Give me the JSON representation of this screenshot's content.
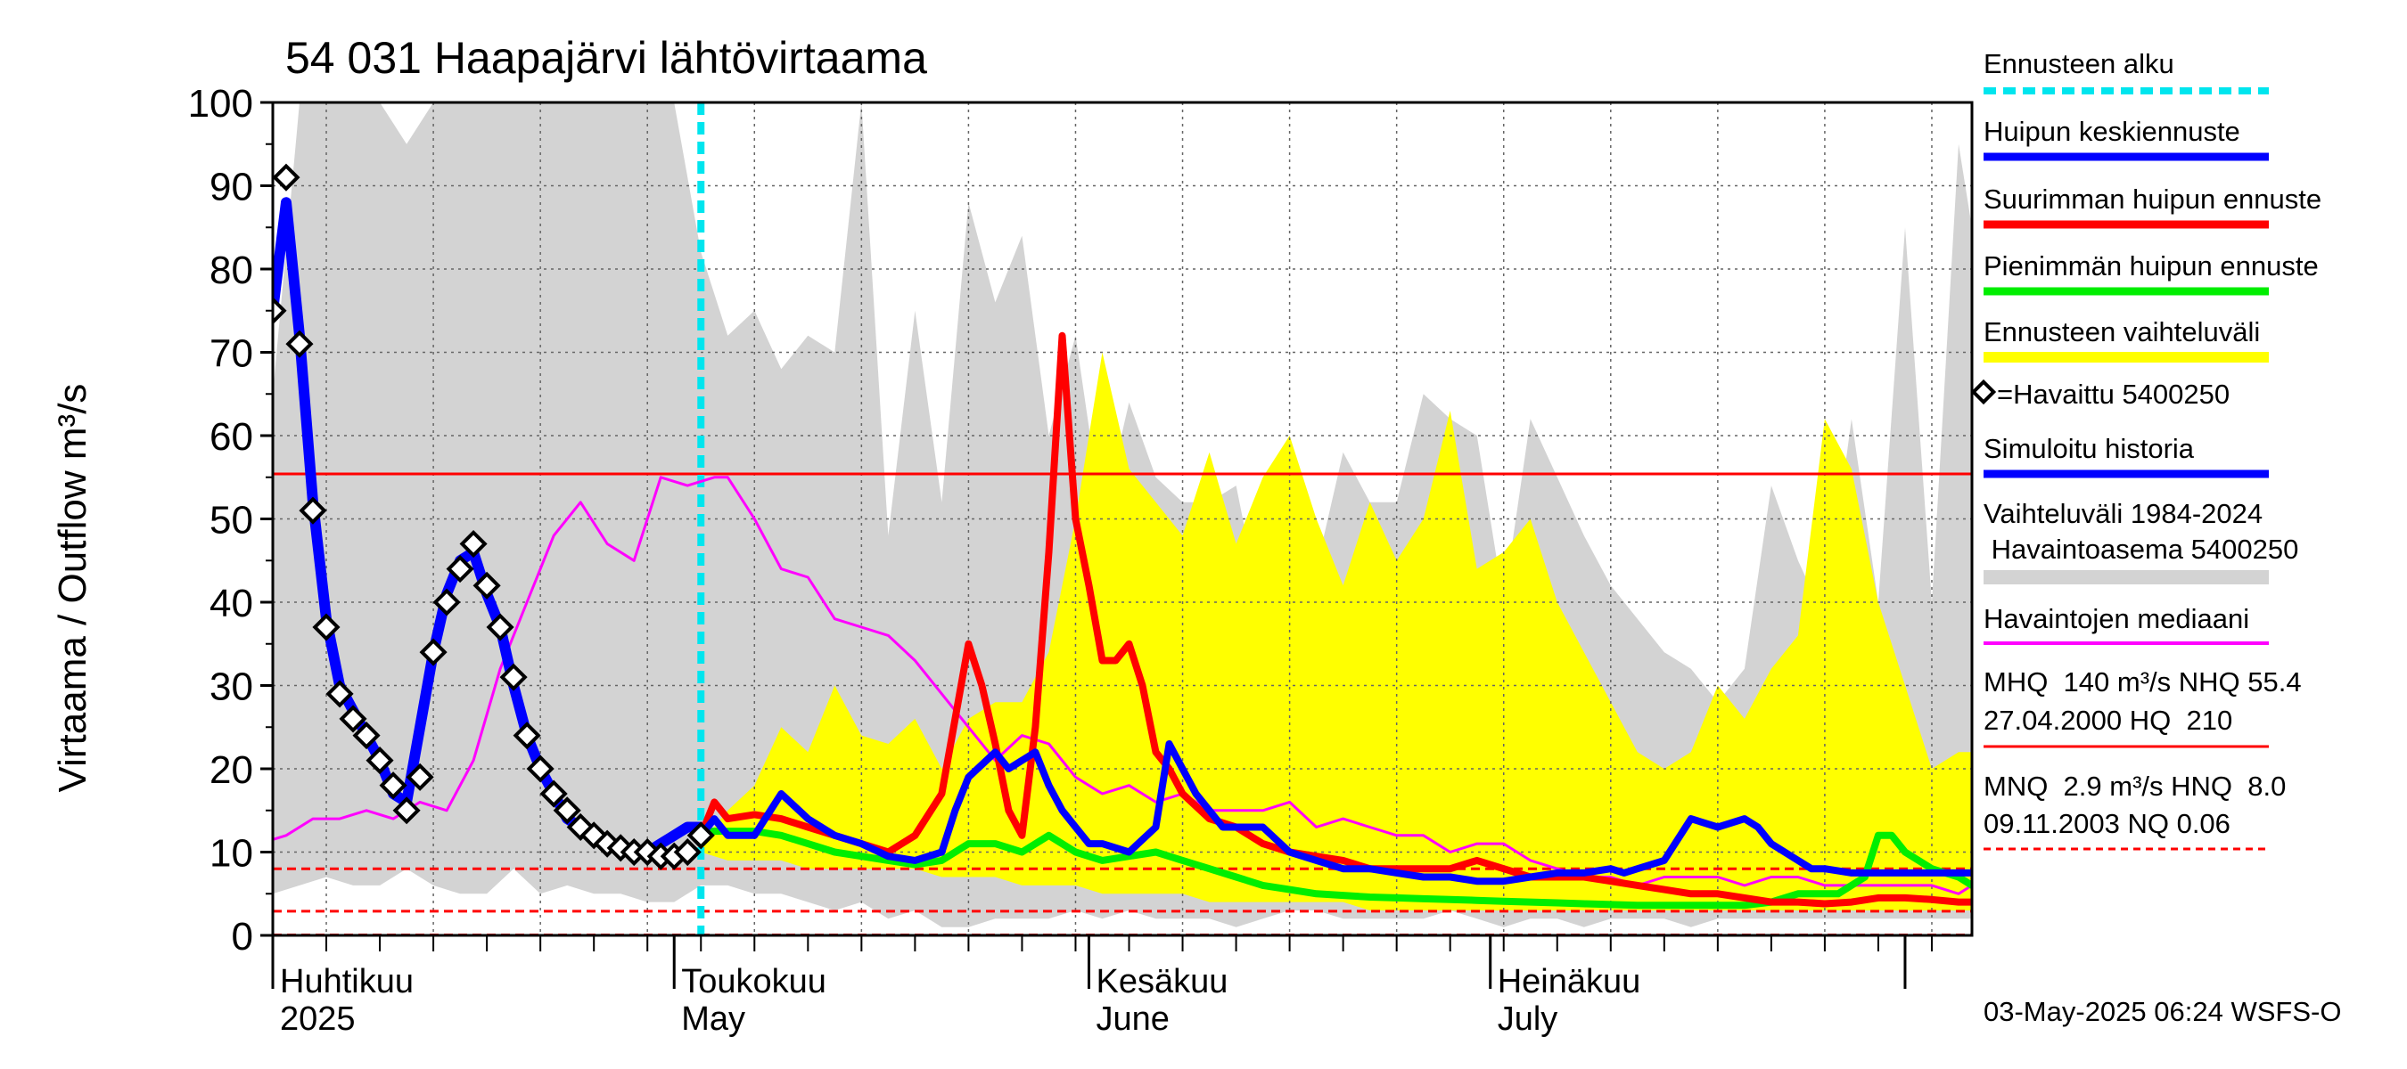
{
  "chart_data": {
    "type": "line",
    "title": "54 031 Haapajärvi lähtövirtaama",
    "ylabel": "Virtaama / Outflow    m³/s",
    "ylim": [
      0,
      100
    ],
    "yticks": [
      0,
      10,
      20,
      30,
      40,
      50,
      60,
      70,
      80,
      90,
      100
    ],
    "x_range_day": [
      0,
      127
    ],
    "forecast_start_day": 32,
    "month_labels": [
      {
        "day": 0,
        "fi": "Huhtikuu",
        "en": "2025"
      },
      {
        "day": 30,
        "fi": "Toukokuu",
        "en": "May"
      },
      {
        "day": 61,
        "fi": "Kesäkuu",
        "en": "June"
      },
      {
        "day": 91,
        "fi": "Heinäkuu",
        "en": "July"
      }
    ],
    "reference_lines": [
      {
        "value": 55.4,
        "style": "solid",
        "color": "#ff0000"
      },
      {
        "value": 8.0,
        "style": "dashed",
        "color": "#ff0000"
      },
      {
        "value": 2.9,
        "style": "dashed",
        "color": "#ff0000"
      },
      {
        "value": 0.06,
        "style": "dashed",
        "color": "#ff0000"
      }
    ],
    "historical_band": {
      "name": "Vaihteluväli 1984-2024 Havaintoasema 5400250",
      "color": "#d3d3d3",
      "x": [
        -1,
        0,
        2,
        4,
        6,
        8,
        10,
        12,
        14,
        16,
        18,
        20,
        22,
        24,
        26,
        28,
        30,
        32,
        34,
        36,
        38,
        40,
        42,
        44,
        46,
        48,
        50,
        52,
        54,
        56,
        58,
        60,
        62,
        64,
        66,
        68,
        70,
        72,
        74,
        76,
        78,
        80,
        82,
        84,
        86,
        88,
        90,
        92,
        94,
        96,
        98,
        100,
        102,
        104,
        106,
        108,
        110,
        112,
        114,
        116,
        118,
        120,
        122,
        124,
        126,
        127
      ],
      "upper": [
        52,
        65,
        100,
        100,
        100,
        100,
        95,
        100,
        100,
        100,
        100,
        100,
        100,
        100,
        100,
        100,
        100,
        82,
        72,
        75,
        68,
        72,
        70,
        100,
        48,
        75,
        52,
        88,
        76,
        84,
        60,
        72,
        50,
        64,
        55,
        52,
        52,
        54,
        38,
        43,
        44,
        58,
        52,
        52,
        65,
        62,
        60,
        40,
        62,
        55,
        48,
        42,
        38,
        34,
        32,
        28,
        32,
        54,
        45,
        38,
        62,
        40,
        85,
        40,
        95,
        85
      ],
      "lower": [
        6,
        5,
        6,
        7,
        6,
        6,
        8,
        6,
        5,
        5,
        8,
        5,
        6,
        5,
        5,
        4,
        4,
        6,
        6,
        5,
        5,
        4,
        3,
        4,
        2,
        3,
        1,
        1,
        2,
        2,
        2,
        3,
        2,
        3,
        2,
        2,
        2,
        1,
        2,
        3,
        3,
        2,
        2,
        2,
        2,
        3,
        2,
        1,
        2,
        2,
        1,
        2,
        2,
        2,
        1,
        2,
        2,
        2,
        2,
        2,
        2,
        2,
        2,
        2,
        2,
        2
      ]
    },
    "forecast_band": {
      "name": "Ennusteen vaihteluväli",
      "color": "#ffff00",
      "x": [
        32,
        34,
        36,
        38,
        40,
        42,
        44,
        46,
        48,
        50,
        52,
        54,
        56,
        58,
        60,
        62,
        64,
        66,
        68,
        70,
        72,
        74,
        76,
        78,
        80,
        82,
        84,
        86,
        88,
        90,
        92,
        94,
        96,
        98,
        100,
        102,
        104,
        106,
        108,
        110,
        112,
        114,
        116,
        118,
        120,
        122,
        124,
        126,
        127
      ],
      "upper": [
        11,
        15,
        18,
        25,
        22,
        30,
        24,
        23,
        26,
        20,
        26,
        28,
        28,
        34,
        50,
        70,
        56,
        52,
        48,
        58,
        47,
        55,
        60,
        50,
        42,
        52,
        45,
        50,
        63,
        44,
        46,
        50,
        40,
        34,
        28,
        22,
        20,
        22,
        30,
        26,
        32,
        36,
        62,
        56,
        40,
        30,
        20,
        22,
        22
      ],
      "lower": [
        10,
        9,
        9,
        9,
        8,
        8,
        8,
        8,
        8,
        7,
        7,
        7,
        6,
        6,
        6,
        5,
        5,
        5,
        5,
        4,
        4,
        4,
        4,
        4,
        4,
        3,
        3,
        3,
        3,
        3,
        3,
        3,
        3,
        3,
        3,
        3,
        3,
        3,
        3,
        3,
        3,
        3,
        3,
        3,
        3,
        3,
        3,
        3,
        3
      ]
    },
    "series": [
      {
        "name": "Havaintojen mediaani",
        "color": "#ff00ff",
        "width": 3,
        "x": [
          -1,
          1,
          3,
          5,
          7,
          9,
          11,
          13,
          15,
          17,
          19,
          21,
          23,
          25,
          27,
          29,
          31,
          33,
          34,
          36,
          38,
          40,
          42,
          44,
          46,
          48,
          50,
          52,
          54,
          56,
          58,
          60,
          62,
          64,
          66,
          68,
          70,
          72,
          74,
          76,
          78,
          80,
          82,
          84,
          86,
          88,
          90,
          92,
          94,
          96,
          98,
          100,
          102,
          104,
          106,
          108,
          110,
          112,
          114,
          116,
          118,
          120,
          122,
          124,
          126,
          127
        ],
        "y": [
          11,
          12,
          14,
          14,
          15,
          14,
          16,
          15,
          21,
          32,
          40,
          48,
          52,
          47,
          45,
          55,
          54,
          55,
          55,
          50,
          44,
          43,
          38,
          37,
          36,
          33,
          29,
          25,
          21,
          24,
          23,
          19,
          17,
          18,
          16,
          17,
          15,
          15,
          15,
          16,
          13,
          14,
          13,
          12,
          12,
          10,
          11,
          11,
          9,
          8,
          7,
          7,
          6,
          7,
          7,
          7,
          6,
          7,
          7,
          6,
          6,
          6,
          6,
          6,
          5,
          6
        ]
      },
      {
        "name": "Simuloitu historia",
        "color": "#0000ff",
        "width": 12,
        "x": [
          0,
          1,
          2,
          3,
          4,
          5,
          6,
          7,
          8,
          9,
          10,
          11,
          12,
          13,
          14,
          15,
          16,
          17,
          18,
          19,
          20,
          21,
          22,
          23,
          24,
          25,
          26,
          27,
          28,
          29,
          30,
          31,
          32
        ],
        "y": [
          75,
          88,
          72,
          52,
          38,
          30,
          27,
          24,
          21,
          17,
          16,
          25,
          34,
          41,
          45,
          46,
          41,
          37,
          30,
          24,
          20,
          17,
          14,
          13,
          12,
          11,
          10.5,
          10,
          10,
          11,
          12,
          13,
          13
        ]
      },
      {
        "name": "Pienimmän huipun ennuste",
        "color": "#00ee00",
        "width": 8,
        "x": [
          32,
          34,
          36,
          38,
          40,
          42,
          44,
          46,
          48,
          50,
          52,
          54,
          56,
          58,
          60,
          62,
          64,
          66,
          68,
          70,
          72,
          74,
          76,
          78,
          80,
          82,
          84,
          86,
          88,
          90,
          92,
          94,
          96,
          98,
          100,
          102,
          104,
          106,
          108,
          110,
          112,
          113,
          114,
          115,
          116,
          117,
          118,
          119,
          120,
          121,
          122,
          124,
          126,
          127
        ],
        "y": [
          12.5,
          12.5,
          12.5,
          12,
          11,
          10,
          9.5,
          9,
          8.5,
          9,
          11,
          11,
          10,
          12,
          10,
          9,
          9.5,
          10,
          9,
          8,
          7,
          6,
          5.5,
          5,
          4.8,
          4.6,
          4.5,
          4.4,
          4.3,
          4.2,
          4.1,
          4,
          3.9,
          3.8,
          3.7,
          3.6,
          3.6,
          3.6,
          3.6,
          3.6,
          4,
          4.5,
          5,
          5,
          5,
          5,
          6,
          7,
          12,
          12,
          10,
          8,
          7,
          6
        ]
      },
      {
        "name": "Suurimman huipun ennuste",
        "color": "#ff0000",
        "width": 8,
        "x": [
          32,
          33,
          34,
          36,
          38,
          40,
          42,
          44,
          46,
          48,
          50,
          52,
          53,
          54,
          55,
          56,
          57,
          58,
          59,
          60,
          61,
          62,
          63,
          64,
          65,
          66,
          67,
          68,
          70,
          72,
          74,
          76,
          78,
          80,
          82,
          84,
          86,
          88,
          90,
          92,
          94,
          96,
          98,
          100,
          102,
          104,
          106,
          108,
          110,
          112,
          114,
          116,
          118,
          120,
          122,
          124,
          126,
          127
        ],
        "y": [
          12,
          16,
          14,
          14.5,
          14,
          13,
          12,
          11,
          10,
          12,
          17,
          35,
          30,
          23,
          15,
          12,
          25,
          46,
          72,
          50,
          42,
          33,
          33,
          35,
          30,
          22,
          20,
          17,
          14,
          13,
          11,
          10,
          9.5,
          9,
          8,
          8,
          8,
          8,
          9,
          8,
          7,
          7,
          7,
          6.5,
          6,
          5.5,
          5,
          5,
          4.5,
          4,
          4,
          3.8,
          4,
          4.5,
          4.5,
          4.3,
          4,
          4
        ]
      },
      {
        "name": "Huipun keskiennuste",
        "color": "#0000ff",
        "width": 8,
        "x": [
          32,
          33,
          34,
          36,
          38,
          40,
          42,
          44,
          46,
          48,
          50,
          51,
          52,
          54,
          55,
          56,
          57,
          58,
          59,
          60,
          61,
          62,
          64,
          66,
          67,
          68,
          69,
          70,
          71,
          72,
          74,
          76,
          78,
          80,
          82,
          84,
          86,
          88,
          90,
          92,
          94,
          96,
          98,
          100,
          101,
          102,
          104,
          106,
          108,
          110,
          111,
          112,
          113,
          114,
          115,
          116,
          118,
          120,
          122,
          124,
          126,
          127
        ],
        "y": [
          12,
          14,
          12,
          12,
          17,
          14,
          12,
          11,
          9.5,
          9,
          10,
          15,
          19,
          22,
          20,
          21,
          22,
          18,
          15,
          13,
          11,
          11,
          10,
          13,
          23,
          20,
          17,
          15,
          13,
          13,
          13,
          10,
          9,
          8,
          8,
          7.5,
          7,
          7,
          6.5,
          6.5,
          7,
          7.5,
          7.5,
          8,
          7.5,
          8,
          9,
          14,
          13,
          14,
          13,
          11,
          10,
          9,
          8,
          8,
          7.5,
          7.5,
          7.5,
          7.5,
          7.5,
          7.5
        ]
      }
    ],
    "observed": {
      "name": "=Havaittu 5400250",
      "x": [
        0,
        1,
        2,
        3,
        4,
        5,
        6,
        7,
        8,
        9,
        10,
        11,
        12,
        13,
        14,
        15,
        16,
        17,
        18,
        19,
        20,
        21,
        22,
        23,
        24,
        25,
        26,
        27,
        28,
        29,
        30,
        31,
        32
      ],
      "y": [
        75,
        91,
        71,
        51,
        37,
        29,
        26,
        24,
        21,
        18,
        15,
        19,
        34,
        40,
        44,
        47,
        42,
        37,
        31,
        24,
        20,
        17,
        15,
        13,
        12,
        11,
        10.5,
        10,
        10,
        9.5,
        9.5,
        10,
        12
      ]
    }
  },
  "legend": {
    "forecast_start": "Ennusteen alku",
    "peak_mean": "Huipun keskiennuste",
    "max_peak": "Suurimman huipun ennuste",
    "min_peak": "Pienimmän huipun ennuste",
    "forecast_range": "Ennusteen vaihteluväli",
    "observed": "=Havaittu 5400250",
    "simulated": "Simuloitu historia",
    "hist_range_1": "Vaihteluväli 1984-2024",
    "hist_range_2": " Havaintoasema 5400250",
    "median": "Havaintojen mediaani",
    "stats_1a": "MHQ  140 m³/s NHQ 55.4",
    "stats_1b": "27.04.2000 HQ  210",
    "stats_2a": "MNQ  2.9 m³/s HNQ  8.0",
    "stats_2b": "09.11.2003 NQ 0.06"
  },
  "footer": "03-May-2025 06:24 WSFS-O",
  "colors": {
    "forecast_start": "#00e5ee",
    "blue": "#0000ff",
    "red": "#ff0000",
    "green": "#00ee00",
    "yellow": "#ffff00",
    "grey": "#d3d3d3",
    "magenta": "#ff00ff"
  }
}
